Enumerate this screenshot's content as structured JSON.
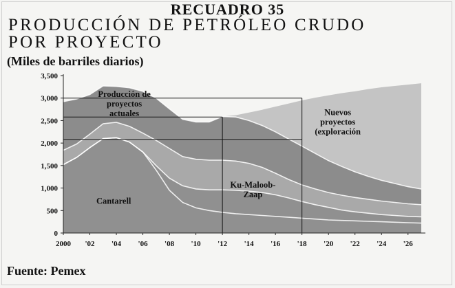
{
  "header": {
    "box_label": "RECUADRO 35",
    "title": "PRODUCCIÓN DE PETRÓLEO CRUDO\nPOR PROYECTO",
    "units": "(Miles de barriles diarios)"
  },
  "source": "Fuente: Pemex",
  "colors": {
    "background": "#f5f5f3",
    "new_projects": "#c4c4c4",
    "ku_maloob_zaap": "#8c8c8c",
    "other_current": "#a9a9a9",
    "cantarell": "#909090",
    "band_lines": "#ffffff"
  },
  "chart_data": {
    "type": "area",
    "title": "PRODUCCIÓN DE PETRÓLEO CRUDO POR PROYECTO",
    "ylabel": "(Miles de barriles diarios)",
    "ylim": [
      0,
      3500
    ],
    "xlim": [
      2000,
      2027
    ],
    "yticks": [
      "0",
      "500",
      "1,000",
      "1,500",
      "2,000",
      "2,500",
      "3,000",
      "3,500"
    ],
    "ytick_values": [
      0,
      500,
      1000,
      1500,
      2000,
      2500,
      3000,
      3500
    ],
    "xticks": [
      "2000",
      "'02",
      "'04",
      "'06",
      "'08",
      "'10",
      "'12",
      "'14",
      "'16",
      "'18",
      "'20",
      "'22",
      "'24",
      "'26"
    ],
    "xtick_values": [
      2000,
      2002,
      2004,
      2006,
      2008,
      2010,
      2012,
      2014,
      2016,
      2018,
      2020,
      2022,
      2024,
      2026
    ],
    "x": [
      2000,
      2001,
      2002,
      2003,
      2004,
      2005,
      2006,
      2007,
      2008,
      2009,
      2010,
      2011,
      2012,
      2013,
      2014,
      2015,
      2016,
      2017,
      2018,
      2019,
      2020,
      2021,
      2022,
      2023,
      2024,
      2025,
      2026,
      2027
    ],
    "boundaries": [
      {
        "values": [
          2920,
          2980,
          3080,
          3270,
          3260,
          3230,
          3150,
          3000,
          2760,
          2530,
          2470,
          2470,
          2590,
          2620,
          2680,
          2740,
          2810,
          2880,
          2950,
          3010,
          3060,
          3110,
          3150,
          3200,
          3240,
          3270,
          3300,
          3330
        ]
      },
      {
        "values": [
          2920,
          2980,
          3080,
          3270,
          3260,
          3230,
          3150,
          3000,
          2760,
          2530,
          2470,
          2470,
          2590,
          2580,
          2500,
          2390,
          2250,
          2090,
          1930,
          1770,
          1610,
          1480,
          1360,
          1260,
          1170,
          1100,
          1030,
          980
        ]
      },
      {
        "values": [
          1840,
          1980,
          2200,
          2430,
          2460,
          2370,
          2220,
          2060,
          1880,
          1700,
          1640,
          1620,
          1620,
          1600,
          1550,
          1460,
          1330,
          1190,
          1070,
          980,
          900,
          840,
          790,
          750,
          710,
          680,
          650,
          630
        ]
      },
      {
        "values": [
          1520,
          1680,
          1900,
          2100,
          2120,
          2020,
          1800,
          1500,
          1220,
          1050,
          980,
          960,
          960,
          950,
          930,
          900,
          850,
          780,
          700,
          630,
          570,
          510,
          470,
          440,
          410,
          390,
          370,
          360
        ]
      },
      {
        "values": [
          1520,
          1680,
          1900,
          2100,
          2120,
          2020,
          1800,
          1400,
          950,
          680,
          560,
          500,
          460,
          430,
          410,
          390,
          370,
          350,
          330,
          310,
          290,
          280,
          270,
          260,
          250,
          240,
          230,
          220
        ]
      }
    ],
    "series": [
      {
        "name": "Nuevos proyectos (exploración",
        "bounds": [
          0,
          1
        ]
      },
      {
        "name": "Ku-Maloob-Zaap",
        "bounds": [
          1,
          2
        ]
      },
      {
        "name": "Producción de proyectos actuales",
        "bounds": [
          2,
          3
        ]
      },
      {
        "name": "Cantarell",
        "bounds": [
          3,
          5
        ]
      }
    ],
    "annotations": [
      {
        "lines": [
          "Producción de",
          "proyectos",
          "actuales"
        ],
        "x": 2004.6,
        "y": 3030
      },
      {
        "lines": [
          "Nuevos",
          "proyectos",
          "(exploración"
        ],
        "x": 2020.7,
        "y": 2620
      },
      {
        "lines": [
          "Ku-Maloob-",
          "Zaap"
        ],
        "x": 2014.3,
        "y": 1010
      },
      {
        "lines": [
          "Cantarell"
        ],
        "x": 2003.8,
        "y": 650
      }
    ],
    "reference_lines": {
      "horizontal": [
        {
          "y": 3000,
          "x_from": 2000,
          "x_to": 2018
        },
        {
          "y": 2580,
          "x_from": 2000,
          "x_to": 2012
        },
        {
          "y": 2080,
          "x_from": 2000,
          "x_to": 2018
        }
      ],
      "vertical": [
        {
          "x": 2012,
          "y_from": 0,
          "y_to": 2580
        },
        {
          "x": 2018,
          "y_from": 0,
          "y_to": 3000
        }
      ]
    },
    "grid": false,
    "legend": "none"
  }
}
